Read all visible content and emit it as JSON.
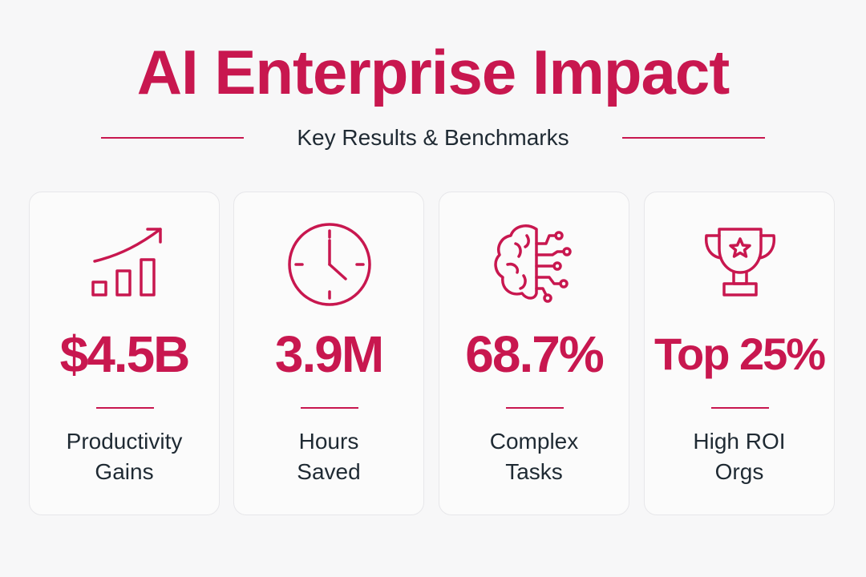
{
  "title": "AI Enterprise Impact",
  "subtitle": "Key Results & Benchmarks",
  "colors": {
    "accent": "#c8174f",
    "text": "#1f2a33",
    "card_border": "#e7e7ea"
  },
  "cards": [
    {
      "icon": "growth-bar-chart-icon",
      "value": "$4.5B",
      "label_line1": "Productivity",
      "label_line2": "Gains"
    },
    {
      "icon": "clock-icon",
      "value": "3.9M",
      "label_line1": "Hours",
      "label_line2": "Saved"
    },
    {
      "icon": "brain-circuit-icon",
      "value": "68.7%",
      "label_line1": "Complex",
      "label_line2": "Tasks"
    },
    {
      "icon": "trophy-icon",
      "value": "Top 25%",
      "label_line1": "High ROI",
      "label_line2": "Orgs"
    }
  ]
}
